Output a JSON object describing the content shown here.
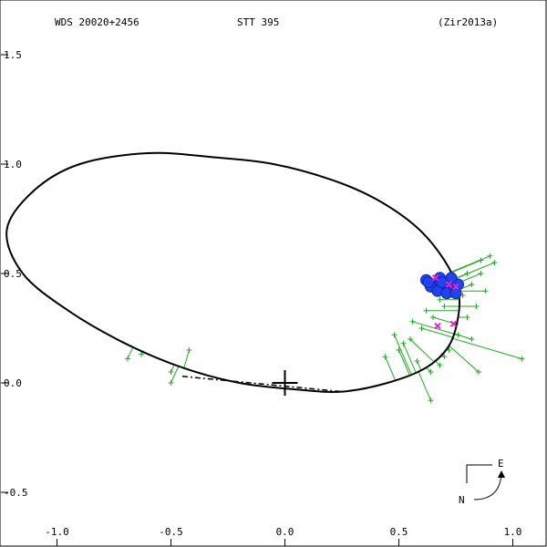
{
  "header": {
    "left": "WDS 20020+2456",
    "center": "STT 395",
    "right": "(Zir2013a)"
  },
  "chart_data": {
    "type": "scatter",
    "xlim": [
      -1.25,
      1.15
    ],
    "ylim": [
      -0.75,
      1.75
    ],
    "x_ticks": [
      {
        "v": -1.0,
        "label": "-1.0"
      },
      {
        "v": -0.5,
        "label": "-0.5"
      },
      {
        "v": 0.0,
        "label": "0.0"
      },
      {
        "v": 0.5,
        "label": "0.5"
      },
      {
        "v": 1.0,
        "label": "1.0"
      }
    ],
    "y_ticks": [
      {
        "v": 1.5,
        "label": "1.5"
      },
      {
        "v": 1.0,
        "label": "1.0"
      },
      {
        "v": 0.5,
        "label": "0.5"
      },
      {
        "v": 0.0,
        "label": "0.0"
      },
      {
        "v": -0.5,
        "label": "-0.5"
      }
    ],
    "orbit": [
      [
        0.76,
        0.42
      ],
      [
        0.7,
        0.56
      ],
      [
        0.58,
        0.71
      ],
      [
        0.4,
        0.84
      ],
      [
        0.2,
        0.93
      ],
      [
        -0.05,
        1.0
      ],
      [
        -0.3,
        1.03
      ],
      [
        -0.6,
        1.05
      ],
      [
        -0.9,
        1.0
      ],
      [
        -1.1,
        0.88
      ],
      [
        -1.22,
        0.7
      ],
      [
        -1.15,
        0.5
      ],
      [
        -0.95,
        0.33
      ],
      [
        -0.7,
        0.18
      ],
      [
        -0.45,
        0.07
      ],
      [
        -0.2,
        0.0
      ],
      [
        0.05,
        -0.03
      ],
      [
        0.25,
        -0.04
      ],
      [
        0.45,
        0.0
      ],
      [
        0.62,
        0.07
      ],
      [
        0.72,
        0.17
      ],
      [
        0.76,
        0.3
      ],
      [
        0.76,
        0.42
      ]
    ],
    "node_line": [
      [
        -0.45,
        0.03
      ],
      [
        0.25,
        -0.04
      ]
    ],
    "primary": [
      0.0,
      0.0
    ],
    "green_obs": [
      [
        0.44,
        0.12
      ],
      [
        0.5,
        0.15
      ],
      [
        0.55,
        0.2
      ],
      [
        0.6,
        0.25
      ],
      [
        0.65,
        0.3
      ],
      [
        0.7,
        0.35
      ],
      [
        0.78,
        0.4
      ],
      [
        0.82,
        0.45
      ],
      [
        0.86,
        0.5
      ],
      [
        0.9,
        0.58
      ],
      [
        0.92,
        0.55
      ],
      [
        0.88,
        0.42
      ],
      [
        0.84,
        0.35
      ],
      [
        0.8,
        0.3
      ],
      [
        0.76,
        0.22
      ],
      [
        0.72,
        0.15
      ],
      [
        0.68,
        0.08
      ],
      [
        0.64,
        0.05
      ],
      [
        0.58,
        0.1
      ],
      [
        0.52,
        0.18
      ],
      [
        0.48,
        0.22
      ],
      [
        0.56,
        0.28
      ],
      [
        0.62,
        0.33
      ],
      [
        0.68,
        0.38
      ],
      [
        0.74,
        0.44
      ],
      [
        0.8,
        0.5
      ],
      [
        0.86,
        0.56
      ],
      [
        0.75,
        0.27
      ],
      [
        0.82,
        0.2
      ],
      [
        0.7,
        0.12
      ],
      [
        1.04,
        0.11
      ],
      [
        0.85,
        0.05
      ],
      [
        0.64,
        -0.08
      ],
      [
        -0.63,
        0.13
      ],
      [
        -0.69,
        0.11
      ],
      [
        -0.42,
        0.15
      ],
      [
        -0.5,
        0.05
      ],
      [
        -0.5,
        0.0
      ]
    ],
    "blue_obs": [
      [
        0.62,
        0.47
      ],
      [
        0.65,
        0.45
      ],
      [
        0.68,
        0.48
      ],
      [
        0.7,
        0.44
      ],
      [
        0.72,
        0.46
      ],
      [
        0.74,
        0.43
      ],
      [
        0.76,
        0.45
      ],
      [
        0.64,
        0.44
      ],
      [
        0.67,
        0.42
      ],
      [
        0.71,
        0.41
      ],
      [
        0.73,
        0.48
      ],
      [
        0.75,
        0.41
      ],
      [
        0.63,
        0.46
      ],
      [
        0.69,
        0.46
      ]
    ],
    "magenta_obs": [
      [
        0.66,
        0.48
      ],
      [
        0.72,
        0.45
      ],
      [
        0.75,
        0.44
      ],
      [
        0.67,
        0.26
      ],
      [
        0.74,
        0.27
      ]
    ],
    "orientation_labels": {
      "east": "E",
      "north": "N"
    }
  }
}
